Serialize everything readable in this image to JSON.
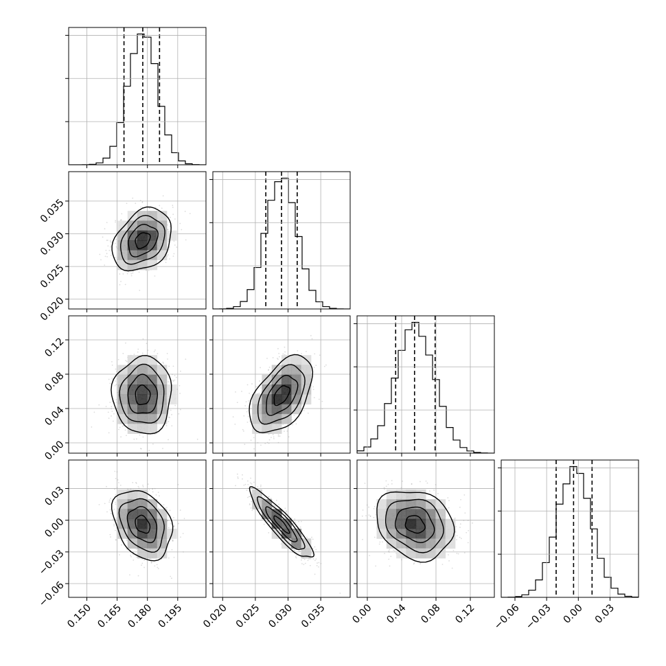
{
  "chart_data": {
    "type": "corner",
    "grid": true,
    "parameters": [
      {
        "xlim": [
          0.141,
          0.209
        ],
        "ticks": [
          0.15,
          0.165,
          0.18,
          0.195
        ],
        "tick_labels": [
          "0.150",
          "0.165",
          "0.180",
          "0.195"
        ],
        "mean": 0.1776,
        "sd": 0.0073,
        "quantiles": [
          0.1684,
          0.1777,
          0.186
        ]
      },
      {
        "xlim": [
          0.0185,
          0.0395
        ],
        "ticks": [
          0.02,
          0.025,
          0.03,
          0.035
        ],
        "tick_labels": [
          "0.020",
          "0.025",
          "0.030",
          "0.035"
        ],
        "mean": 0.029,
        "sd": 0.0024,
        "quantiles": [
          0.0266,
          0.029,
          0.0314
        ]
      },
      {
        "xlim": [
          -0.012,
          0.148
        ],
        "ticks": [
          0.0,
          0.04,
          0.08,
          0.12
        ],
        "tick_labels": [
          "0.00",
          "0.04",
          "0.08",
          "0.12"
        ],
        "mean": 0.0555,
        "sd": 0.0225,
        "quantiles": [
          0.033,
          0.055,
          0.079
        ]
      },
      {
        "xlim": [
          -0.073,
          0.057
        ],
        "ticks": [
          -0.06,
          -0.03,
          0.0,
          0.03
        ],
        "tick_labels": [
          "−0.06",
          "−0.03",
          "0.00",
          "0.03"
        ],
        "mean": -0.004,
        "sd": 0.0165,
        "quantiles": [
          -0.021,
          -0.0045,
          0.013
        ]
      }
    ],
    "correlations": [
      [
        1.0,
        0.3,
        0.0,
        -0.3
      ],
      [
        0.3,
        1.0,
        0.5,
        -0.9
      ],
      [
        0.0,
        0.5,
        1.0,
        -0.2
      ],
      [
        -0.3,
        -0.9,
        -0.2,
        1.0
      ]
    ],
    "contour_levels_sigma": [
      0.5,
      1.0,
      1.5,
      2.0
    ],
    "histogram_bins": 20,
    "colors": {
      "ink": "#000000",
      "grid": "#b0b0b0",
      "scatter": "#9a9a9a"
    }
  }
}
